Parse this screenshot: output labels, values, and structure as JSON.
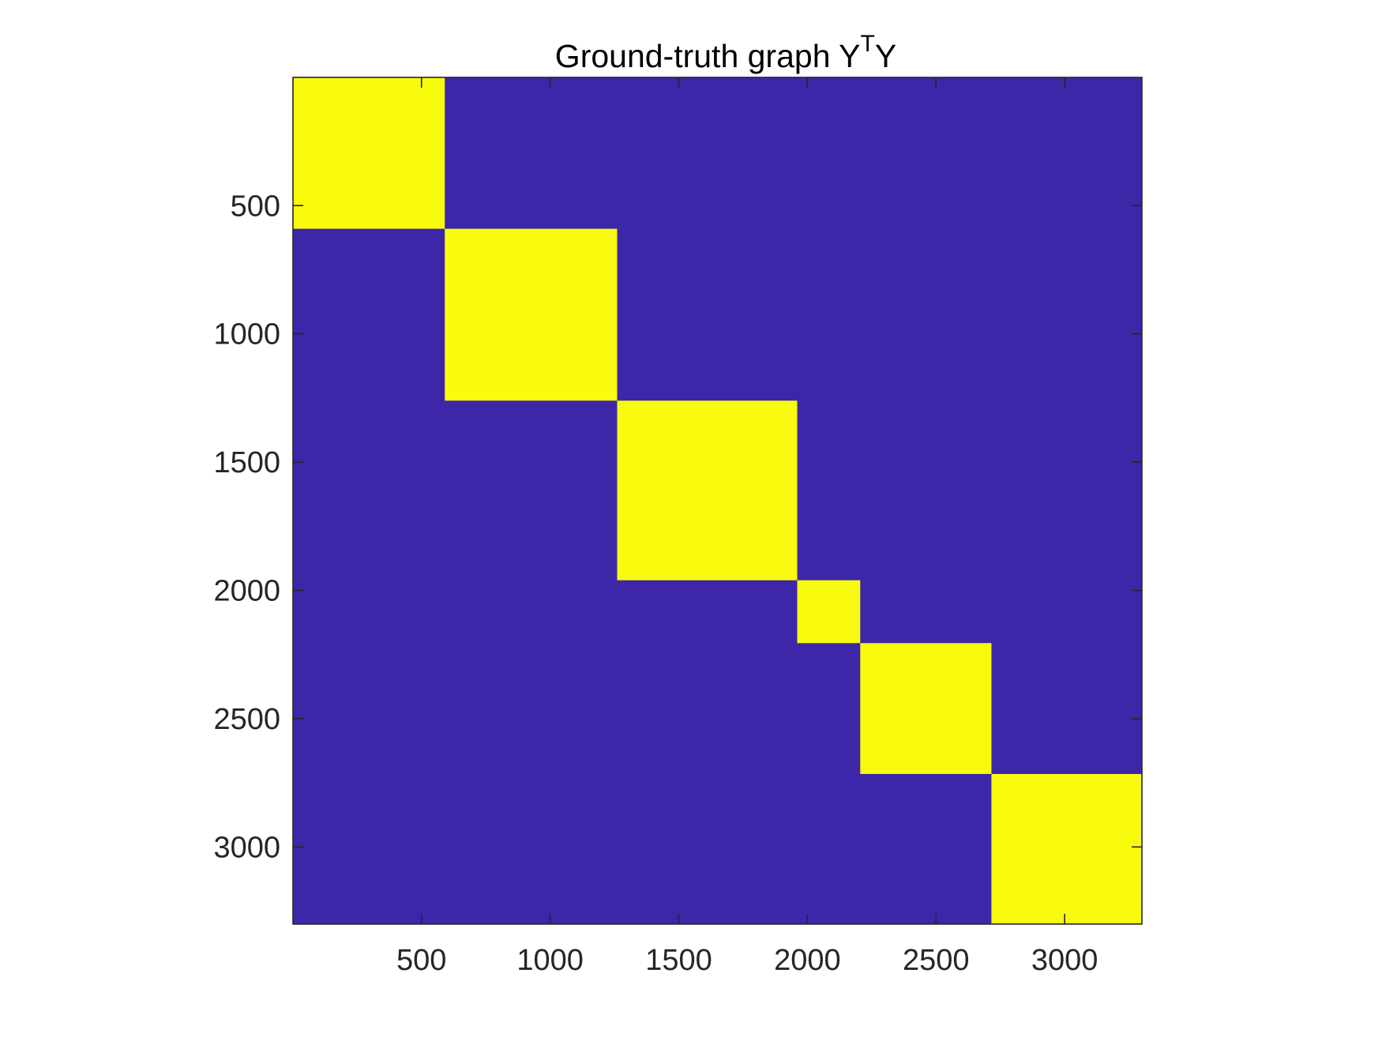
{
  "chart_data": {
    "type": "heatmap",
    "title": "Ground-truth graph Y",
    "title_superscript": "T",
    "title_suffix": "Y",
    "xlabel": "",
    "ylabel": "",
    "xlim": [
      0.5,
      3300.5
    ],
    "ylim": [
      0.5,
      3300.5
    ],
    "y_reversed": true,
    "x_ticks": [
      500,
      1000,
      1500,
      2000,
      2500,
      3000
    ],
    "y_ticks": [
      500,
      1000,
      1500,
      2000,
      2500,
      3000
    ],
    "grid": false,
    "colors": {
      "background": "#3d26a8",
      "block": "#f9fb0e",
      "axes": "#262626"
    },
    "blocks": [
      {
        "start": 1,
        "end": 590,
        "value": 1
      },
      {
        "start": 591,
        "end": 1260,
        "value": 1
      },
      {
        "start": 1261,
        "end": 1960,
        "value": 1
      },
      {
        "start": 1961,
        "end": 2205,
        "value": 1
      },
      {
        "start": 2206,
        "end": 2715,
        "value": 1
      },
      {
        "start": 2716,
        "end": 3300,
        "value": 1
      }
    ]
  }
}
